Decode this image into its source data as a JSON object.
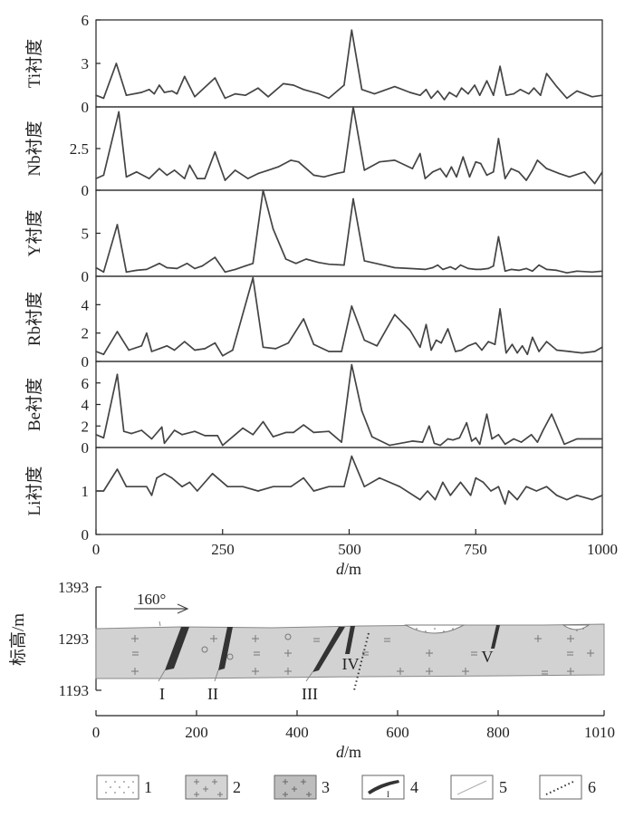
{
  "chart_data": [
    {
      "type": "line",
      "panel": 1,
      "ylabel": "Ti衬度",
      "ylim": [
        0,
        6
      ],
      "yticks": [
        "0",
        "3",
        "6"
      ],
      "x": [
        0,
        15,
        40,
        60,
        90,
        105,
        115,
        125,
        135,
        150,
        160,
        175,
        195,
        235,
        255,
        275,
        295,
        320,
        340,
        370,
        390,
        410,
        440,
        460,
        490,
        505,
        525,
        550,
        590,
        620,
        640,
        652,
        662,
        675,
        688,
        698,
        712,
        722,
        735,
        748,
        758,
        772,
        785,
        798,
        810,
        825,
        838,
        855,
        865,
        878,
        890,
        910,
        930,
        950,
        980,
        1000
      ],
      "values": [
        0.8,
        0.6,
        3.0,
        0.8,
        1.0,
        1.2,
        0.9,
        1.5,
        1.0,
        1.1,
        0.9,
        2.1,
        0.7,
        2.0,
        0.6,
        0.9,
        0.8,
        1.3,
        0.7,
        1.6,
        1.5,
        1.2,
        0.9,
        0.6,
        1.5,
        5.3,
        1.2,
        0.9,
        1.4,
        1.0,
        0.8,
        1.2,
        0.6,
        1.1,
        0.5,
        1.0,
        0.7,
        1.3,
        0.9,
        1.5,
        0.8,
        1.8,
        0.8,
        2.8,
        0.8,
        0.9,
        1.2,
        0.9,
        1.3,
        0.8,
        2.3,
        1.4,
        0.6,
        1.1,
        0.7,
        0.8
      ]
    },
    {
      "type": "line",
      "panel": 2,
      "ylabel": "Nb衬度",
      "ylim": [
        0,
        5
      ],
      "yticks": [
        "0",
        "2.5"
      ],
      "x": [
        0,
        15,
        45,
        60,
        80,
        105,
        125,
        140,
        155,
        175,
        185,
        200,
        215,
        235,
        255,
        275,
        300,
        320,
        340,
        360,
        385,
        400,
        430,
        450,
        475,
        490,
        508,
        530,
        560,
        590,
        625,
        640,
        650,
        665,
        680,
        692,
        702,
        712,
        725,
        738,
        750,
        760,
        772,
        785,
        795,
        808,
        820,
        835,
        850,
        862,
        872,
        890,
        915,
        935,
        965,
        985,
        1000
      ],
      "values": [
        0.7,
        0.9,
        4.7,
        0.8,
        1.1,
        0.7,
        1.3,
        0.9,
        1.2,
        0.7,
        1.5,
        0.7,
        0.7,
        2.3,
        0.6,
        1.2,
        0.7,
        1.0,
        1.2,
        1.4,
        1.8,
        1.7,
        0.9,
        0.8,
        1.0,
        1.1,
        5.0,
        1.2,
        1.7,
        1.8,
        1.3,
        2.2,
        0.7,
        1.1,
        1.3,
        0.8,
        1.4,
        0.8,
        2.0,
        0.8,
        1.7,
        1.6,
        0.9,
        1.1,
        3.1,
        0.7,
        1.3,
        1.1,
        0.6,
        1.2,
        1.8,
        1.3,
        1.0,
        0.8,
        1.1,
        0.4,
        1.1
      ]
    },
    {
      "type": "line",
      "panel": 3,
      "ylabel": "Y衬度",
      "ylim": [
        0,
        10
      ],
      "yticks": [
        "0",
        "5"
      ],
      "x": [
        0,
        15,
        42,
        60,
        80,
        100,
        125,
        140,
        160,
        180,
        195,
        210,
        235,
        255,
        275,
        295,
        310,
        330,
        350,
        375,
        395,
        415,
        440,
        460,
        490,
        508,
        530,
        560,
        590,
        620,
        650,
        665,
        675,
        685,
        700,
        710,
        720,
        735,
        750,
        760,
        775,
        785,
        795,
        808,
        820,
        835,
        850,
        862,
        875,
        890,
        910,
        930,
        950,
        980,
        1000
      ],
      "values": [
        1.0,
        0.5,
        6.0,
        0.5,
        0.7,
        0.8,
        1.5,
        1.0,
        0.9,
        1.5,
        0.9,
        1.2,
        2.2,
        0.5,
        0.8,
        1.2,
        1.5,
        10.0,
        5.5,
        2.0,
        1.5,
        2.0,
        1.6,
        1.4,
        1.3,
        9.0,
        1.8,
        1.4,
        1.0,
        0.9,
        0.8,
        1.0,
        1.3,
        0.8,
        1.1,
        0.8,
        1.3,
        0.9,
        0.8,
        0.8,
        0.9,
        1.2,
        4.6,
        0.6,
        0.8,
        0.7,
        0.9,
        0.6,
        1.3,
        0.8,
        0.7,
        0.4,
        0.6,
        0.5,
        0.6
      ]
    },
    {
      "type": "line",
      "panel": 4,
      "ylabel": "Rb衬度",
      "ylim": [
        0,
        6
      ],
      "yticks": [
        "0",
        "2",
        "4"
      ],
      "x": [
        0,
        15,
        42,
        65,
        90,
        100,
        110,
        125,
        140,
        155,
        175,
        195,
        215,
        235,
        250,
        270,
        310,
        330,
        355,
        380,
        410,
        430,
        460,
        485,
        505,
        530,
        555,
        590,
        620,
        640,
        652,
        662,
        672,
        682,
        695,
        710,
        722,
        735,
        750,
        762,
        775,
        788,
        798,
        810,
        822,
        832,
        842,
        852,
        862,
        875,
        890,
        910,
        935,
        960,
        985,
        1000
      ],
      "values": [
        0.7,
        0.5,
        2.1,
        0.8,
        1.1,
        2.0,
        0.7,
        0.9,
        1.1,
        0.8,
        1.4,
        0.8,
        0.9,
        1.3,
        0.4,
        0.8,
        5.9,
        1.0,
        0.9,
        1.3,
        3.0,
        1.2,
        0.7,
        0.7,
        3.9,
        1.5,
        1.1,
        3.3,
        2.2,
        1.0,
        2.6,
        0.8,
        1.5,
        1.3,
        2.3,
        0.7,
        0.8,
        1.1,
        1.3,
        0.8,
        1.4,
        1.2,
        3.7,
        0.6,
        1.2,
        0.6,
        1.1,
        0.5,
        1.7,
        0.7,
        1.4,
        0.8,
        0.7,
        0.6,
        0.7,
        1.0
      ]
    },
    {
      "type": "line",
      "panel": 5,
      "ylabel": "Be衬度",
      "ylim": [
        0,
        8
      ],
      "yticks": [
        "0",
        "2",
        "4",
        "6"
      ],
      "x": [
        0,
        15,
        42,
        55,
        70,
        90,
        110,
        130,
        135,
        155,
        170,
        195,
        215,
        240,
        250,
        275,
        290,
        310,
        330,
        350,
        375,
        390,
        410,
        430,
        460,
        485,
        505,
        525,
        545,
        580,
        625,
        645,
        658,
        668,
        680,
        695,
        705,
        718,
        732,
        742,
        750,
        758,
        772,
        782,
        795,
        808,
        825,
        840,
        860,
        872,
        883,
        900,
        925,
        950,
        980,
        1000
      ],
      "values": [
        1.2,
        0.9,
        6.8,
        1.5,
        1.3,
        1.6,
        0.8,
        1.9,
        0.4,
        1.6,
        1.2,
        1.5,
        1.1,
        1.1,
        0.2,
        1.2,
        1.8,
        1.2,
        2.4,
        1.0,
        1.4,
        1.4,
        2.1,
        1.4,
        1.5,
        0.5,
        7.7,
        3.4,
        1.0,
        0.2,
        0.6,
        0.5,
        2.0,
        0.4,
        0.2,
        0.8,
        0.7,
        0.9,
        2.3,
        0.6,
        0.9,
        0.3,
        3.1,
        0.8,
        1.2,
        0.3,
        0.8,
        0.5,
        1.2,
        0.5,
        1.6,
        3.1,
        0.3,
        0.8,
        0.8,
        0.8
      ]
    },
    {
      "type": "line",
      "panel": 6,
      "ylabel": "Li衬度",
      "ylim": [
        0,
        2
      ],
      "yticks": [
        "0",
        "1"
      ],
      "x": [
        0,
        15,
        42,
        60,
        80,
        100,
        110,
        120,
        135,
        150,
        170,
        185,
        200,
        230,
        260,
        290,
        320,
        350,
        385,
        410,
        430,
        460,
        490,
        505,
        530,
        560,
        600,
        640,
        655,
        670,
        685,
        700,
        720,
        740,
        750,
        765,
        780,
        795,
        808,
        815,
        832,
        850,
        870,
        890,
        910,
        930,
        950,
        980,
        1000
      ],
      "values": [
        1.0,
        1.0,
        1.5,
        1.1,
        1.1,
        1.1,
        0.9,
        1.3,
        1.4,
        1.3,
        1.1,
        1.2,
        1.0,
        1.4,
        1.1,
        1.1,
        1.0,
        1.1,
        1.1,
        1.3,
        1.0,
        1.1,
        1.1,
        1.8,
        1.1,
        1.3,
        1.1,
        0.8,
        1.0,
        0.8,
        1.2,
        0.9,
        1.2,
        0.9,
        1.3,
        1.2,
        1.0,
        1.1,
        0.7,
        1.0,
        0.8,
        1.1,
        1.0,
        1.1,
        0.9,
        0.8,
        0.9,
        0.8,
        0.9
      ]
    }
  ],
  "main_xaxis": {
    "label": "d/m",
    "label_italic": "d",
    "label_unit": "/m",
    "range": [
      0,
      1000
    ],
    "ticks": [
      "0",
      "250",
      "500",
      "750",
      "1000"
    ]
  },
  "profile": {
    "ylabel": "标高/m",
    "yticks": [
      "1393",
      "1293",
      "1193"
    ],
    "yrange": [
      1193,
      1393
    ],
    "xaxis_label_italic": "d",
    "xaxis_label_unit": "/m",
    "xrange": [
      0,
      1010
    ],
    "xticks": [
      "0",
      "200",
      "400",
      "600",
      "800",
      "1010"
    ],
    "direction": "160°",
    "veins": [
      "I",
      "II",
      "III",
      "IV",
      "V"
    ]
  },
  "legend": [
    "1",
    "2",
    "3",
    "4",
    "5",
    "6"
  ],
  "legend_vein_sample": "I",
  "colors": {
    "line": "#444444",
    "rock": "#cfcfcf",
    "vein": "#333333",
    "axis": "#222222"
  }
}
